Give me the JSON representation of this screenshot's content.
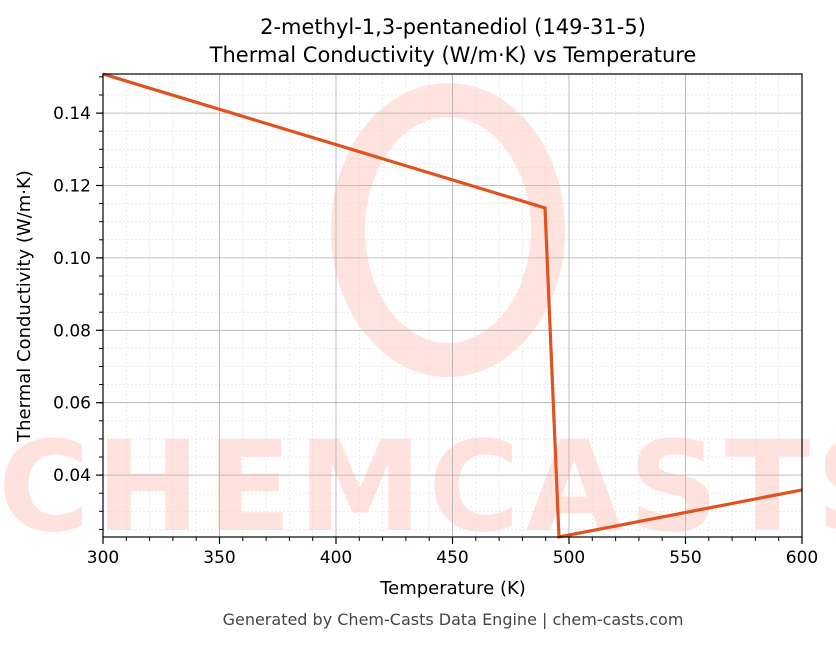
{
  "chart_data": {
    "type": "line",
    "title": "2-methyl-1,3-pentanediol (149-31-5)",
    "subtitle": "Thermal Conductivity (W/m·K) vs Temperature",
    "xlabel": "Temperature (K)",
    "ylabel": "Thermal Conductivity (W/m·K)",
    "xlim": [
      300,
      600
    ],
    "ylim": [
      0.0229,
      0.1508
    ],
    "xticks": [
      300,
      350,
      400,
      450,
      500,
      550,
      600
    ],
    "xtick_labels": [
      "300",
      "350",
      "400",
      "450",
      "500",
      "550",
      "600"
    ],
    "yticks": [
      0.04,
      0.06,
      0.08,
      0.1,
      0.12,
      0.14
    ],
    "ytick_labels": [
      "0.04",
      "0.06",
      "0.08",
      "0.10",
      "0.12",
      "0.14"
    ],
    "grid": true,
    "series": [
      {
        "name": "Thermal Conductivity",
        "color": "#e05220",
        "x": [
          300,
          489.7,
          495.7,
          600
        ],
        "y": [
          0.1508,
          0.1138,
          0.0229,
          0.0359
        ]
      }
    ],
    "watermark": "CHEMCASTS",
    "footer": "Generated by Chem-Casts Data Engine | chem-casts.com"
  }
}
